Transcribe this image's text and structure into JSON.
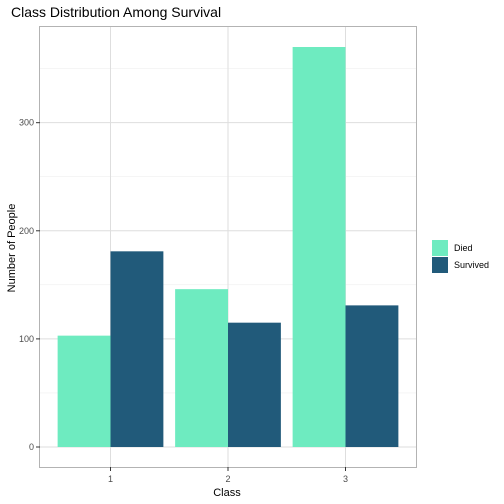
{
  "chart_data": {
    "type": "bar",
    "title": "Class Distribution Among Survival",
    "xlabel": "Class",
    "ylabel": "Number of People",
    "categories": [
      "1",
      "2",
      "3"
    ],
    "series": [
      {
        "name": "Died",
        "color": "#6EEBC0",
        "values": [
          103,
          146,
          370
        ]
      },
      {
        "name": "Survived",
        "color": "#215A7A",
        "values": [
          181,
          115,
          131
        ]
      }
    ],
    "ylim": [
      -18.5,
      388.5
    ],
    "yticks": [
      0,
      100,
      200,
      300
    ],
    "grid": true,
    "legend_position": "right"
  }
}
